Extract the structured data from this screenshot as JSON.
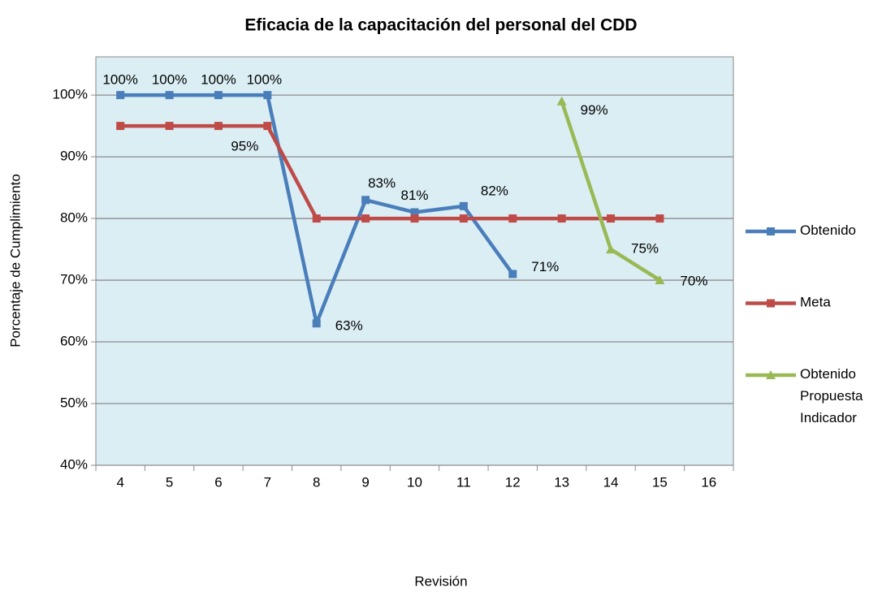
{
  "chart_data": {
    "type": "line",
    "title": "Eficacia de la capacitación del personal del CDD",
    "y_label": "Porcentaje de Cumplimiento",
    "x_label": "Revisión",
    "categories": [
      "4",
      "5",
      "6",
      "7",
      "8",
      "9",
      "10",
      "11",
      "12",
      "13",
      "14",
      "15",
      "16"
    ],
    "series": [
      {
        "name": "Obtenido",
        "color": "#4a7ebb",
        "marker": "square",
        "values": [
          100,
          100,
          100,
          100,
          63,
          83,
          81,
          82,
          71,
          null,
          null,
          null,
          null
        ],
        "value_labels": [
          "100%",
          "100%",
          "100%",
          "100%",
          "63%",
          "83%",
          "81%",
          "82%",
          "71%",
          null,
          null,
          null,
          null
        ]
      },
      {
        "name": "Meta",
        "color": "#be4b48",
        "marker": "square",
        "values": [
          95,
          95,
          95,
          95,
          80,
          80,
          80,
          80,
          80,
          80,
          80,
          80,
          null
        ],
        "value_labels": [
          null,
          null,
          null,
          "95%",
          null,
          null,
          null,
          null,
          null,
          null,
          null,
          null,
          null
        ]
      },
      {
        "name": "Obtenido Propuesta Indicador",
        "color": "#98b954",
        "marker": "triangle",
        "values": [
          null,
          null,
          null,
          null,
          null,
          null,
          null,
          null,
          null,
          99,
          75,
          70,
          null
        ],
        "value_labels": [
          null,
          null,
          null,
          null,
          null,
          null,
          null,
          null,
          null,
          "99%",
          "75%",
          "70%",
          null
        ]
      }
    ],
    "ylim": [
      40,
      106.2
    ],
    "yticks": [
      {
        "value": 40,
        "label": "40%"
      },
      {
        "value": 50,
        "label": "50%"
      },
      {
        "value": 60,
        "label": "60%"
      },
      {
        "value": 70,
        "label": "70%"
      },
      {
        "value": 80,
        "label": "80%"
      },
      {
        "value": 90,
        "label": "90%"
      },
      {
        "value": 100,
        "label": "100%"
      }
    ],
    "grid": true,
    "legend": "right"
  }
}
